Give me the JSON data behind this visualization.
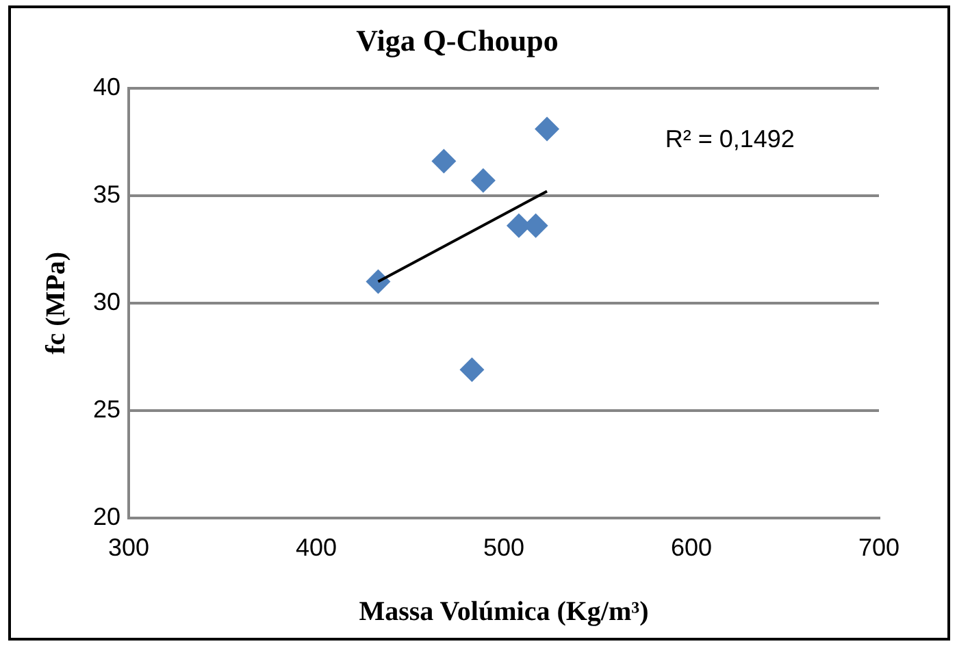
{
  "chart_data": {
    "type": "scatter",
    "title": "Viga Q-Choupo",
    "xlabel": "Massa Volúmica (Kg/m³)",
    "ylabel": "fc (MPa)",
    "xlim": [
      300,
      700
    ],
    "xticks": [
      300,
      400,
      500,
      600,
      700
    ],
    "ylim": [
      20,
      40
    ],
    "yticks": [
      20,
      25,
      30,
      35,
      40
    ],
    "grid": "y",
    "legend": false,
    "marker": "diamond",
    "annotations": [
      "R² = 0,1492"
    ],
    "series": [
      {
        "color": "#4f81bd",
        "x": [
          433,
          468,
          489,
          508,
          517,
          523,
          483
        ],
        "values": [
          31.0,
          36.6,
          35.7,
          33.6,
          33.6,
          38.1,
          26.9
        ]
      },
      {
        "type": "line",
        "color": "#000000",
        "x": [
          433,
          523
        ],
        "values": [
          31.0,
          35.2
        ],
        "marker": "none"
      }
    ]
  }
}
